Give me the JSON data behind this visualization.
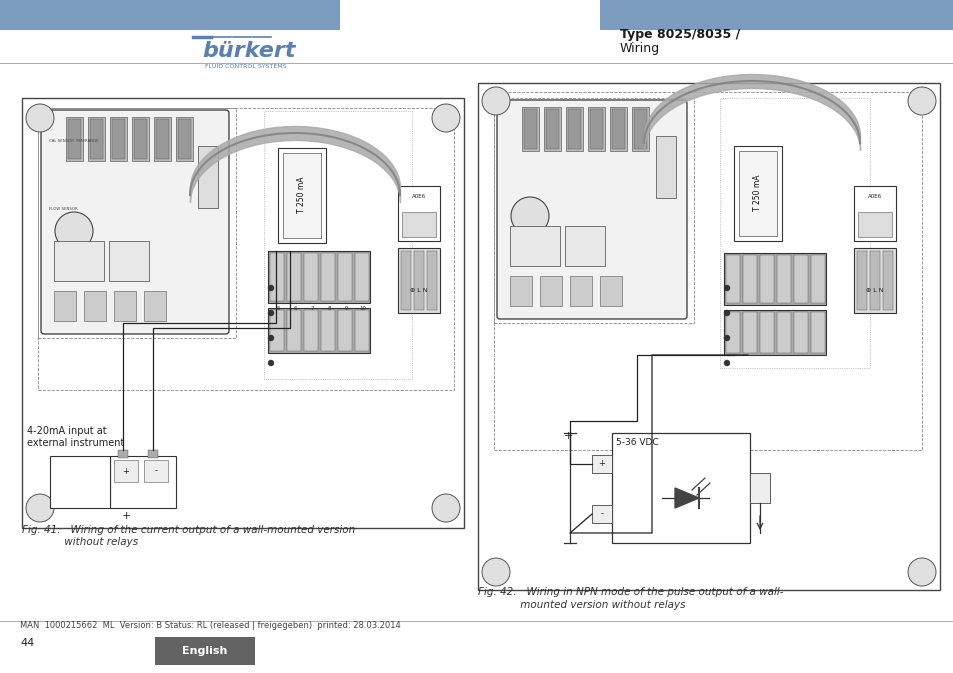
{
  "page_bg": "#ffffff",
  "header_bar_color": "#7b9bbf",
  "burkert_color": "#5a80b0",
  "type_text": "Type 8025/8035 /",
  "wiring_text": "Wiring",
  "burkert_subtext": "FLUID CONTROL SYSTEMS",
  "fig41_caption_line1": "Fig. 41:   Wiring of the current output of a wall-mounted version",
  "fig41_caption_line2": "             without relays",
  "fig42_caption_line1": "Fig. 42:   Wiring in NPN mode of the pulse output of a wall-",
  "fig42_caption_line2": "             mounted version without relays",
  "label_4_20ma_line1": "4-20mA input at",
  "label_4_20ma_line2": "external instrument",
  "label_5_36vdc": "5-36 VDC",
  "footer_text": "MAN  1000215662  ML  Version: B Status: RL (released | freigegeben)  printed: 28.03.2014",
  "page_number": "44",
  "english_label": "English",
  "english_bg": "#636363",
  "separator_color": "#aaaaaa",
  "dark": "#222222",
  "mid": "#888888",
  "light": "#cccccc",
  "lighter": "#eeeeee"
}
